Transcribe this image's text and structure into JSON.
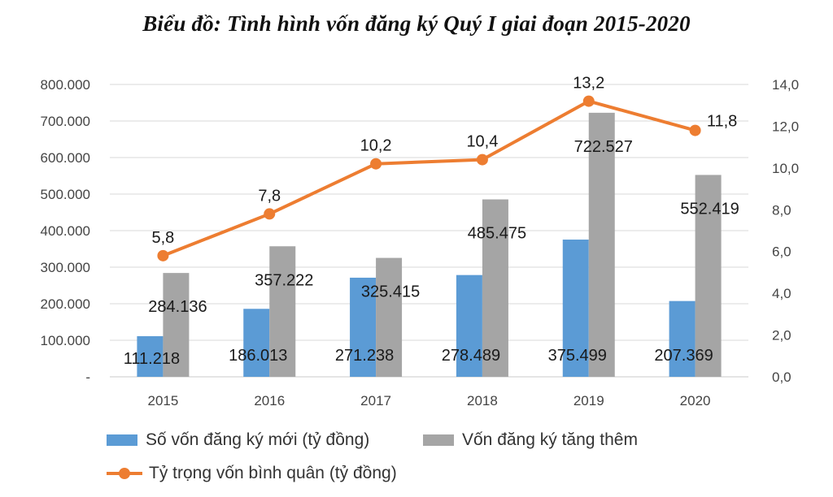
{
  "chart_data": {
    "type": "bar",
    "title": "Biểu đồ: Tình hình vốn đăng ký Quý I giai đoạn 2015-2020",
    "categories": [
      "2015",
      "2016",
      "2017",
      "2018",
      "2019",
      "2020"
    ],
    "series": [
      {
        "name": "Số vốn đăng ký mới (tỷ đồng)",
        "type": "bar",
        "axis": "left",
        "color": "#5B9BD5",
        "values": [
          111218,
          186013,
          271238,
          278489,
          375499,
          207369
        ],
        "labels": [
          "111.218",
          "186.013",
          "271.238",
          "278.489",
          "375.499",
          "207.369"
        ]
      },
      {
        "name": "Vốn đăng ký tăng thêm",
        "type": "bar",
        "axis": "left",
        "color": "#A5A5A5",
        "values": [
          284136,
          357222,
          325415,
          485475,
          722527,
          552419
        ],
        "labels": [
          "284.136",
          "357.222",
          "325.415",
          "485.475",
          "722.527",
          "552.419"
        ]
      },
      {
        "name": "Tỷ trọng vốn bình quân (tỷ đồng)",
        "type": "line",
        "axis": "right",
        "color": "#ED7D31",
        "values": [
          5.8,
          7.8,
          10.2,
          10.4,
          13.2,
          11.8
        ],
        "labels": [
          "5,8",
          "7,8",
          "10,2",
          "10,4",
          "13,2",
          "11,8"
        ]
      }
    ],
    "y_left": {
      "min": 0,
      "max": 800000,
      "ticks": [
        "-",
        "100.000",
        "200.000",
        "300.000",
        "400.000",
        "500.000",
        "600.000",
        "700.000",
        "800.000"
      ]
    },
    "y_right": {
      "min": 0,
      "max": 14,
      "ticks": [
        "0,0",
        "2,0",
        "4,0",
        "6,0",
        "8,0",
        "10,0",
        "12,0",
        "14,0"
      ]
    },
    "grid": true,
    "legend_position": "bottom"
  }
}
